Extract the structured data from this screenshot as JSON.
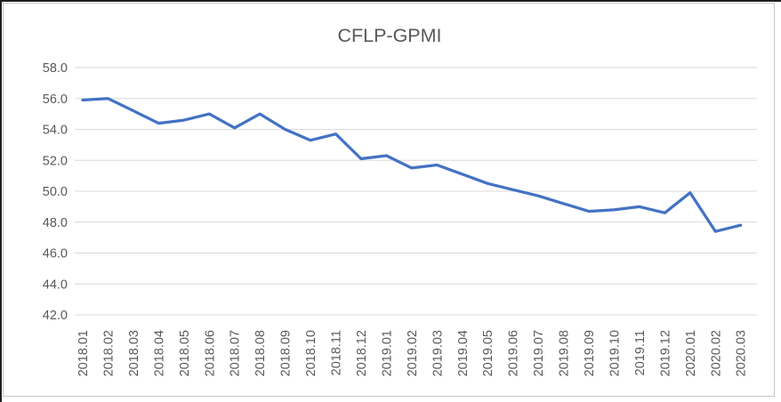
{
  "chart_data": {
    "type": "line",
    "title": "CFLP-GPMI",
    "categories": [
      "2018.01",
      "2018.02",
      "2018.03",
      "2018.04",
      "2018.05",
      "2018.06",
      "2018.07",
      "2018.08",
      "2018.09",
      "2018.10",
      "2018.11",
      "2018.12",
      "2019.01",
      "2019.02",
      "2019.03",
      "2019.04",
      "2019.05",
      "2019.06",
      "2019.07",
      "2019.08",
      "2019.09",
      "2019.10",
      "2019.11",
      "2019.12",
      "2020.01",
      "2020.02",
      "2020.03"
    ],
    "series": [
      {
        "name": "CFLP-GPMI",
        "values": [
          55.9,
          56.0,
          55.2,
          54.4,
          54.6,
          55.0,
          54.1,
          55.0,
          54.0,
          53.3,
          53.7,
          52.1,
          52.3,
          51.5,
          51.7,
          51.1,
          50.5,
          50.1,
          49.7,
          49.2,
          48.7,
          48.8,
          49.0,
          48.6,
          49.9,
          47.4,
          47.8
        ]
      }
    ],
    "xlabel": "",
    "ylabel": "",
    "ylim": [
      42.0,
      58.0
    ],
    "ytick_step": 2.0,
    "y_tick_labels": [
      "58.0",
      "56.0",
      "54.0",
      "52.0",
      "50.0",
      "48.0",
      "46.0",
      "44.0",
      "42.0"
    ],
    "grid": true,
    "legend_position": "none",
    "colors": {
      "series_line": "#4472C4",
      "gridline": "#D9D9D9",
      "tick_text": "#595959",
      "title_text": "#595959",
      "chart_border": "#C9C7C5",
      "outer_edge": "#1F1F1F",
      "background": "#FFFFFF"
    }
  }
}
